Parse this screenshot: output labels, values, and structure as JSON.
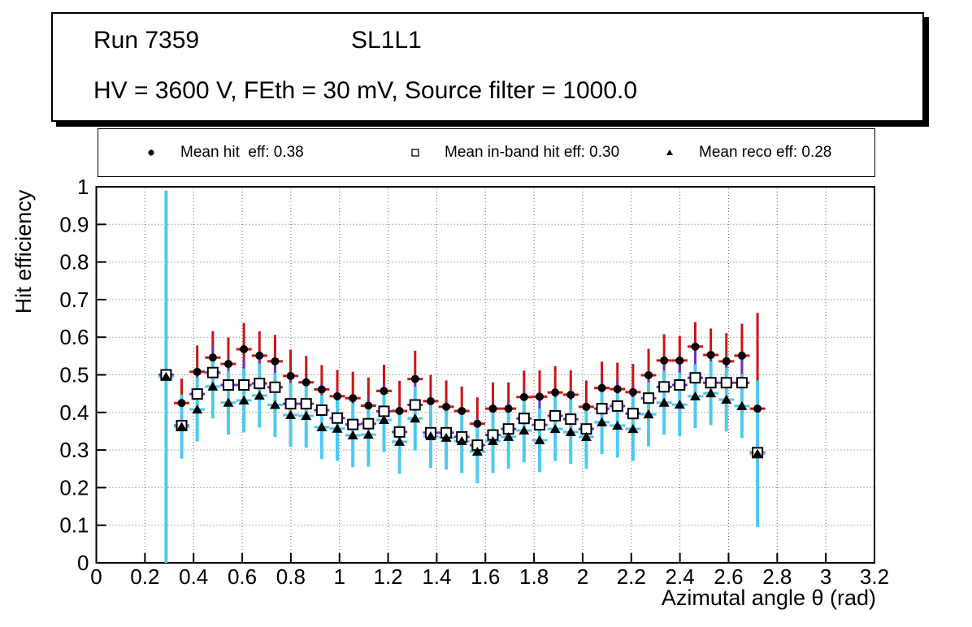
{
  "title_box": {
    "run": "Run 7359",
    "layer": "SL1L1",
    "conditions": "HV = 3600 V, FEth = 30 mV, Source filter = 1000.0"
  },
  "legend": {
    "items": [
      {
        "marker": "filled-circle",
        "label": "Mean hit  eff: 0.38"
      },
      {
        "marker": "open-square",
        "label": "Mean in-band hit eff: 0.30"
      },
      {
        "marker": "filled-triangle",
        "label": "Mean reco eff: 0.28"
      }
    ]
  },
  "colors": {
    "hit_error": "#cc1414",
    "inband_error": "#7030b8",
    "reco_error": "#4dc9f0",
    "marker": "#000000",
    "background": "#ffffff"
  },
  "chart_data": {
    "type": "scatter",
    "title": "",
    "xlabel": "Azimutal angle θ (rad)",
    "ylabel": "Hit efficiency",
    "xlim": [
      0,
      3.2
    ],
    "ylim": [
      0,
      1
    ],
    "grid": true,
    "legend_position": "top",
    "xticks": [
      0,
      0.2,
      0.4,
      0.6,
      0.8,
      1,
      1.2,
      1.4,
      1.6,
      1.8,
      2,
      2.2,
      2.4,
      2.6,
      2.8,
      3,
      3.2
    ],
    "xtick_labels": [
      "0",
      "0.2",
      "0.4",
      "0.6",
      "0.8",
      "1",
      "1.2",
      "1.4",
      "1.6",
      "1.8",
      "2",
      "2.2",
      "2.4",
      "2.6",
      "2.8",
      "3",
      "3.2"
    ],
    "yticks": [
      0,
      0.1,
      0.2,
      0.3,
      0.4,
      0.5,
      0.6,
      0.7,
      0.8,
      0.9,
      1
    ],
    "ytick_labels": [
      "0",
      "0.1",
      "0.2",
      "0.3",
      "0.4",
      "0.5",
      "0.6",
      "0.7",
      "0.8",
      "0.9",
      "1"
    ],
    "x": [
      0.287,
      0.351,
      0.415,
      0.479,
      0.543,
      0.607,
      0.671,
      0.735,
      0.799,
      0.863,
      0.927,
      0.991,
      1.055,
      1.119,
      1.183,
      1.247,
      1.311,
      1.375,
      1.439,
      1.503,
      1.567,
      1.631,
      1.695,
      1.759,
      1.823,
      1.887,
      1.951,
      2.015,
      2.079,
      2.143,
      2.207,
      2.271,
      2.335,
      2.399,
      2.463,
      2.527,
      2.591,
      2.655,
      2.719
    ],
    "series": [
      {
        "id": "hit",
        "name": "Mean hit  eff: 0.38",
        "mean": 0.38,
        "marker": "filled-circle",
        "marker_color": "#000000",
        "error_color": "#cc1414",
        "values": [
          null,
          0.425,
          0.508,
          0.546,
          0.529,
          0.568,
          0.551,
          0.536,
          0.497,
          0.48,
          0.461,
          0.443,
          0.438,
          0.418,
          0.457,
          0.404,
          0.489,
          0.43,
          0.415,
          0.404,
          0.37,
          0.41,
          0.41,
          0.441,
          0.442,
          0.453,
          0.447,
          0.415,
          0.465,
          0.462,
          0.454,
          0.499,
          0.538,
          0.538,
          0.575,
          0.553,
          0.536,
          0.551,
          0.41
        ],
        "errors": [
          null,
          0.065,
          0.07,
          0.07,
          0.07,
          0.07,
          0.065,
          0.07,
          0.07,
          0.07,
          0.065,
          0.07,
          0.07,
          0.075,
          0.07,
          0.08,
          0.075,
          0.07,
          0.07,
          0.065,
          0.07,
          0.07,
          0.07,
          0.07,
          0.07,
          0.07,
          0.065,
          0.07,
          0.07,
          0.07,
          0.075,
          0.07,
          0.07,
          0.065,
          0.065,
          0.07,
          0.075,
          0.085,
          0.255
        ]
      },
      {
        "id": "inband",
        "name": "Mean in-band hit eff: 0.30",
        "mean": 0.3,
        "marker": "open-square",
        "marker_color": "#000000",
        "error_color": "#7030b8",
        "values": [
          0.5,
          0.365,
          0.449,
          0.506,
          0.473,
          0.473,
          0.477,
          0.467,
          0.423,
          0.423,
          0.406,
          0.385,
          0.368,
          0.37,
          0.403,
          0.348,
          0.42,
          0.346,
          0.346,
          0.335,
          0.313,
          0.34,
          0.356,
          0.384,
          0.367,
          0.391,
          0.382,
          0.356,
          0.41,
          0.417,
          0.397,
          0.438,
          0.468,
          0.473,
          0.492,
          0.479,
          0.479,
          0.479,
          0.293
        ],
        "errors": [
          0.03,
          0.07,
          0.07,
          0.07,
          0.07,
          0.07,
          0.07,
          0.07,
          0.07,
          0.07,
          0.07,
          0.07,
          0.07,
          0.07,
          0.07,
          0.07,
          0.07,
          0.07,
          0.07,
          0.07,
          0.07,
          0.07,
          0.07,
          0.07,
          0.07,
          0.07,
          0.07,
          0.07,
          0.07,
          0.07,
          0.07,
          0.07,
          0.07,
          0.07,
          0.07,
          0.07,
          0.07,
          0.07,
          0.04
        ]
      },
      {
        "id": "reco",
        "name": "Mean reco eff: 0.28",
        "mean": 0.28,
        "marker": "filled-triangle",
        "marker_color": "#000000",
        "error_color": "#4dc9f0",
        "values": [
          0.495,
          0.362,
          0.408,
          0.469,
          0.426,
          0.432,
          0.445,
          0.42,
          0.393,
          0.391,
          0.361,
          0.357,
          0.339,
          0.341,
          0.38,
          0.322,
          0.384,
          0.337,
          0.333,
          0.324,
          0.296,
          0.324,
          0.335,
          0.352,
          0.326,
          0.356,
          0.348,
          0.335,
          0.374,
          0.365,
          0.356,
          0.395,
          0.426,
          0.421,
          0.443,
          0.451,
          0.434,
          0.417,
          0.29
        ],
        "errors": [
          0.495,
          0.085,
          0.085,
          0.085,
          0.085,
          0.085,
          0.085,
          0.085,
          0.085,
          0.085,
          0.085,
          0.085,
          0.085,
          0.085,
          0.085,
          0.085,
          0.085,
          0.085,
          0.085,
          0.085,
          0.085,
          0.085,
          0.085,
          0.085,
          0.085,
          0.085,
          0.085,
          0.085,
          0.085,
          0.085,
          0.085,
          0.085,
          0.085,
          0.085,
          0.085,
          0.085,
          0.085,
          0.085,
          0.195
        ]
      }
    ]
  }
}
